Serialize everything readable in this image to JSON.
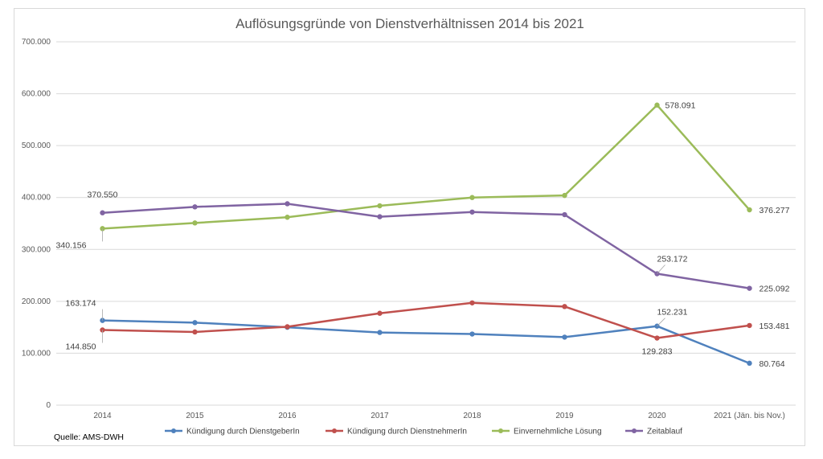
{
  "chart_data": {
    "type": "line",
    "title": "Auflösungsgründe von Dienstverhältnissen 2014 bis 2021",
    "source": "Quelle: AMS-DWH",
    "categories": [
      "2014",
      "2015",
      "2016",
      "2017",
      "2018",
      "2019",
      "2020",
      "2021 (Jän. bis Nov.)"
    ],
    "ylim": [
      0,
      700000
    ],
    "yticks": [
      {
        "value": 0,
        "label": "0"
      },
      {
        "value": 100000,
        "label": "100.000"
      },
      {
        "value": 200000,
        "label": "200.000"
      },
      {
        "value": 300000,
        "label": "300.000"
      },
      {
        "value": 400000,
        "label": "400.000"
      },
      {
        "value": 500000,
        "label": "500.000"
      },
      {
        "value": 600000,
        "label": "600.000"
      },
      {
        "value": 700000,
        "label": "700.000"
      }
    ],
    "grid": true,
    "legend_position": "bottom",
    "series": [
      {
        "name": "Kündigung durch DienstgeberIn",
        "color": "#4f81bd",
        "values": [
          163174,
          159000,
          150000,
          140000,
          137000,
          131000,
          152231,
          80764
        ],
        "labels": [
          {
            "index": 0,
            "text": "163.174"
          },
          {
            "index": 6,
            "text": "152.231"
          },
          {
            "index": 7,
            "text": "80.764"
          }
        ]
      },
      {
        "name": "Kündigung durch DienstnehmerIn",
        "color": "#c0504d",
        "values": [
          144850,
          141000,
          151000,
          177000,
          197000,
          190000,
          129283,
          153481
        ],
        "labels": [
          {
            "index": 0,
            "text": "144.850"
          },
          {
            "index": 6,
            "text": "129.283"
          },
          {
            "index": 7,
            "text": "153.481"
          }
        ]
      },
      {
        "name": "Einvernehmliche Lösung",
        "color": "#9bbb59",
        "values": [
          340156,
          351000,
          362000,
          384000,
          400000,
          404000,
          578091,
          376277
        ],
        "labels": [
          {
            "index": 0,
            "text": "340.156"
          },
          {
            "index": 6,
            "text": "578.091"
          },
          {
            "index": 7,
            "text": "376.277"
          }
        ]
      },
      {
        "name": "Zeitablauf",
        "color": "#8064a2",
        "values": [
          370550,
          382000,
          388000,
          363000,
          372000,
          367000,
          253172,
          225092
        ],
        "labels": [
          {
            "index": 0,
            "text": "370.550"
          },
          {
            "index": 6,
            "text": "253.172"
          },
          {
            "index": 7,
            "text": "225.092"
          }
        ]
      }
    ]
  }
}
